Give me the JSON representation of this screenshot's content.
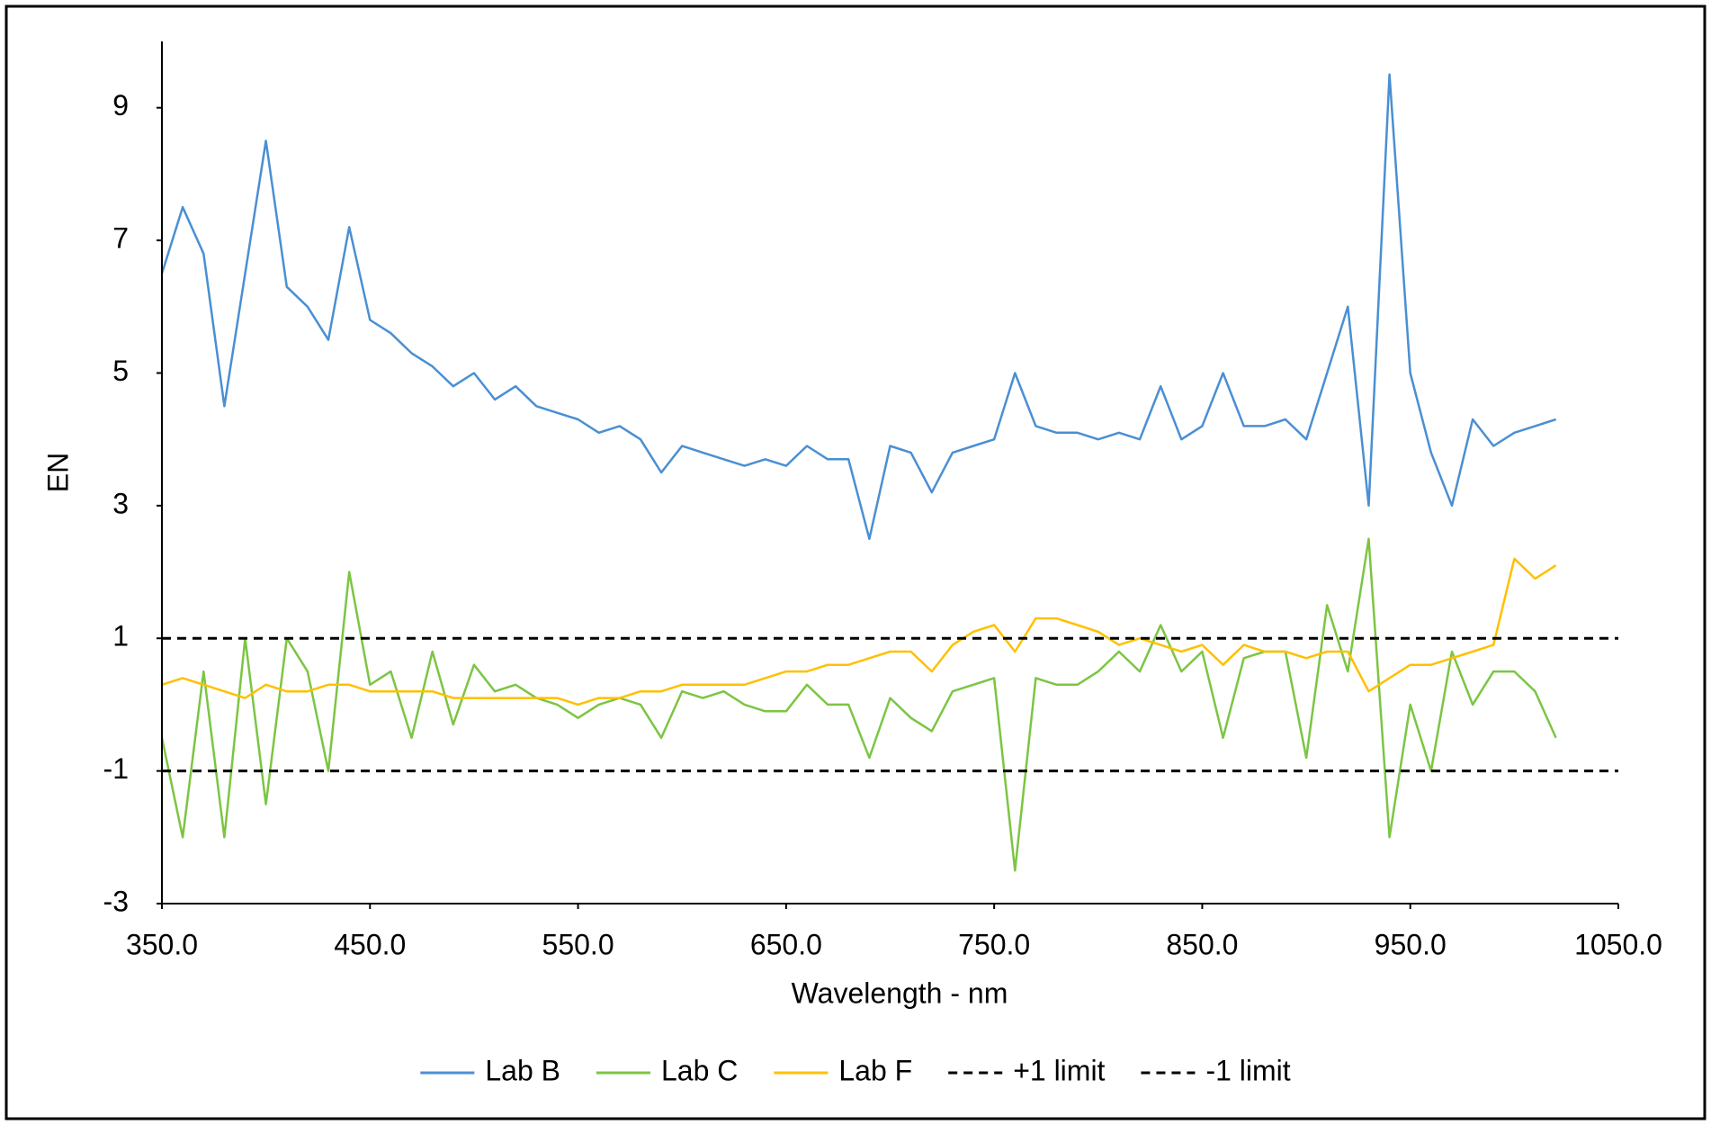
{
  "chart_data": {
    "type": "line",
    "xlabel": "Wavelength - nm",
    "ylabel": "EN",
    "xlim": [
      350,
      1050
    ],
    "xticks": [
      {
        "value": 350,
        "label": "350.0"
      },
      {
        "value": 450,
        "label": "450.0"
      },
      {
        "value": 550,
        "label": "550.0"
      },
      {
        "value": 650,
        "label": "650.0"
      },
      {
        "value": 750,
        "label": "750.0"
      },
      {
        "value": 850,
        "label": "850.0"
      },
      {
        "value": 950,
        "label": "950.0"
      },
      {
        "value": 1050,
        "label": "1050.0"
      }
    ],
    "ylim": [
      -3,
      10
    ],
    "yticks": [
      -3,
      -1,
      1,
      3,
      5,
      7,
      9
    ],
    "grid": false,
    "legend": "bottom",
    "x": [
      350,
      360,
      370,
      380,
      390,
      400,
      410,
      420,
      430,
      440,
      450,
      460,
      470,
      480,
      490,
      500,
      510,
      520,
      530,
      540,
      550,
      560,
      570,
      580,
      590,
      600,
      610,
      620,
      630,
      640,
      650,
      660,
      670,
      680,
      690,
      700,
      710,
      720,
      730,
      740,
      750,
      760,
      770,
      780,
      790,
      800,
      810,
      820,
      830,
      840,
      850,
      860,
      870,
      880,
      890,
      900,
      910,
      920,
      930,
      940,
      950,
      960,
      970,
      980,
      990,
      1000,
      1010,
      1020
    ],
    "series": [
      {
        "name": "Lab B",
        "color": "#4a8fd3",
        "values": [
          6.5,
          7.5,
          6.8,
          4.5,
          6.5,
          8.5,
          6.3,
          6.0,
          5.5,
          7.2,
          5.8,
          5.6,
          5.3,
          5.1,
          4.8,
          5.0,
          4.6,
          4.8,
          4.5,
          4.4,
          4.3,
          4.1,
          4.2,
          4.0,
          3.5,
          3.9,
          3.8,
          3.7,
          3.6,
          3.7,
          3.6,
          3.9,
          3.7,
          3.7,
          2.5,
          3.9,
          3.8,
          3.2,
          3.8,
          3.9,
          4.0,
          5.0,
          4.2,
          4.1,
          4.1,
          4.0,
          4.1,
          4.0,
          4.8,
          4.0,
          4.2,
          5.0,
          4.2,
          4.2,
          4.3,
          4.0,
          5.0,
          6.0,
          3.0,
          9.5,
          5.0,
          3.8,
          3.0,
          4.3,
          3.9,
          4.1,
          4.2,
          4.3
        ]
      },
      {
        "name": "Lab C",
        "color": "#7cc543",
        "values": [
          -0.5,
          -2,
          0.5,
          -2,
          1.0,
          -1.5,
          1.0,
          0.5,
          -1,
          2,
          0.3,
          0.5,
          -0.5,
          0.8,
          -0.3,
          0.6,
          0.2,
          0.3,
          0.1,
          0.0,
          -0.2,
          0.0,
          0.1,
          0.0,
          -0.5,
          0.2,
          0.1,
          0.2,
          0,
          -0.1,
          -0.1,
          0.3,
          0,
          0,
          -0.8,
          0.1,
          -0.2,
          -0.4,
          0.2,
          0.3,
          0.4,
          -2.5,
          0.4,
          0.3,
          0.3,
          0.5,
          0.8,
          0.5,
          1.2,
          0.5,
          0.8,
          -0.5,
          0.7,
          0.8,
          0.8,
          -0.8,
          1.5,
          0.5,
          2.5,
          -2,
          0,
          -1,
          0.8,
          0,
          0.5,
          0.5,
          0.2,
          -0.5
        ]
      },
      {
        "name": "Lab F",
        "color": "#ffc000",
        "values": [
          0.3,
          0.4,
          0.3,
          0.2,
          0.1,
          0.3,
          0.2,
          0.2,
          0.3,
          0.3,
          0.2,
          0.2,
          0.2,
          0.2,
          0.1,
          0.1,
          0.1,
          0.1,
          0.1,
          0.1,
          0.0,
          0.1,
          0.1,
          0.2,
          0.2,
          0.3,
          0.3,
          0.3,
          0.3,
          0.4,
          0.5,
          0.5,
          0.6,
          0.6,
          0.7,
          0.8,
          0.8,
          0.5,
          0.9,
          1.1,
          1.2,
          0.8,
          1.3,
          1.3,
          1.2,
          1.1,
          0.9,
          1.0,
          0.9,
          0.8,
          0.9,
          0.6,
          0.9,
          0.8,
          0.8,
          0.7,
          0.8,
          0.8,
          0.2,
          0.4,
          0.6,
          0.6,
          0.7,
          0.8,
          0.9,
          2.2,
          1.9,
          2.1
        ]
      },
      {
        "name": "+1 limit",
        "color": "#000000",
        "dash": true,
        "x": [
          350,
          1050
        ],
        "values": [
          1,
          1
        ]
      },
      {
        "name": "-1 limit",
        "color": "#000000",
        "dash": true,
        "x": [
          350,
          1050
        ],
        "values": [
          -1,
          -1
        ]
      }
    ]
  }
}
